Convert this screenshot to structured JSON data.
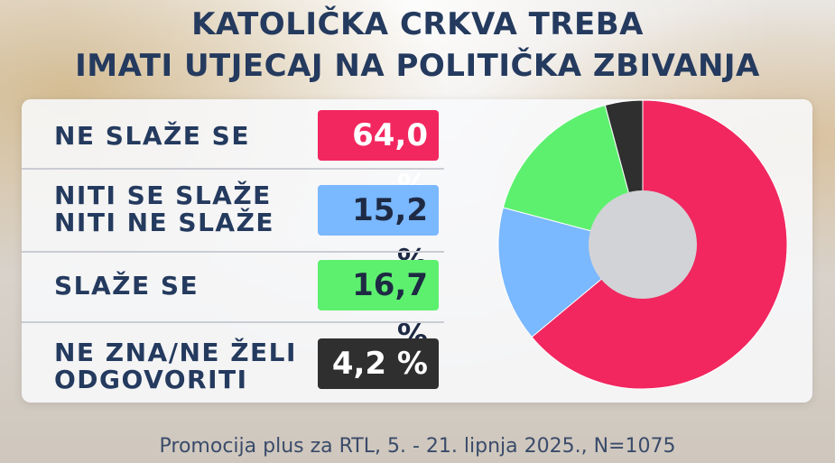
{
  "title": {
    "line1": "KATOLIČKA CRKVA TREBA",
    "line2": "IMATI UTJECAJ NA POLITIČKA ZBIVANJA"
  },
  "footer": "Promocija plus za RTL, 5. - 21. lipnja 2025., N=1075",
  "rows": [
    {
      "line1": "NE SLAŽE SE",
      "line2": "",
      "value_label": "64,0 %",
      "color": "#f2275f",
      "text_color": "#ffffff"
    },
    {
      "line1": "NITI SE SLAŽE",
      "line2": "NITI NE SLAŽE",
      "value_label": "15,2 %",
      "color": "#7ab8ff",
      "text_color": "#1e2a44"
    },
    {
      "line1": "SLAŽE SE",
      "line2": "",
      "value_label": "16,7 %",
      "color": "#5df06f",
      "text_color": "#1e2a44"
    },
    {
      "line1": "NE ZNA/NE ŽELI",
      "line2": "ODGOVORITI",
      "value_label": "4,2 %",
      "color": "#2f2f2f",
      "text_color": "#ffffff"
    }
  ],
  "chart_data": {
    "type": "pie",
    "title": "KATOLIČKA CRKVA TREBA IMATI UTJECAJ NA POLITIČKA ZBIVANJA",
    "donut": true,
    "categories": [
      "NE SLAŽE SE",
      "NITI SE SLAŽE NITI NE SLAŽE",
      "SLAŽE SE",
      "NE ZNA/NE ŽELI ODGOVORITI"
    ],
    "values": [
      64.0,
      15.2,
      16.7,
      4.2
    ],
    "colors": [
      "#f2275f",
      "#7ab8ff",
      "#5df06f",
      "#2f2f2f"
    ]
  }
}
